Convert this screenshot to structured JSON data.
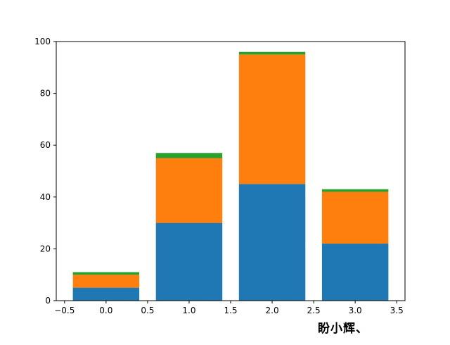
{
  "chart_data": {
    "type": "bar",
    "stacked": true,
    "title": "",
    "xlabel": "",
    "ylabel": "",
    "x": [
      0,
      1,
      2,
      3
    ],
    "series": [
      {
        "values": [
          5,
          30,
          45,
          22
        ],
        "color": "#1f77b4"
      },
      {
        "values": [
          5,
          25,
          50,
          20
        ],
        "color": "#ff7f0e"
      },
      {
        "values": [
          1,
          2,
          1,
          1
        ],
        "color": "#2ca02c"
      }
    ],
    "bar_width": 0.8,
    "xlim": [
      -0.6,
      3.6
    ],
    "ylim": [
      0,
      100
    ],
    "xticks": [
      -0.5,
      0.0,
      0.5,
      1.0,
      1.5,
      2.0,
      2.5,
      3.0,
      3.5
    ],
    "xtick_labels": [
      "−0.5",
      "0.0",
      "0.5",
      "1.0",
      "1.5",
      "2.0",
      "2.5",
      "3.0",
      "3.5"
    ],
    "yticks": [
      0,
      20,
      40,
      60,
      80,
      100
    ],
    "ytick_labels": [
      "0",
      "20",
      "40",
      "60",
      "80",
      "100"
    ],
    "grid": false,
    "legend": "none"
  },
  "watermark": "盼小辉、"
}
